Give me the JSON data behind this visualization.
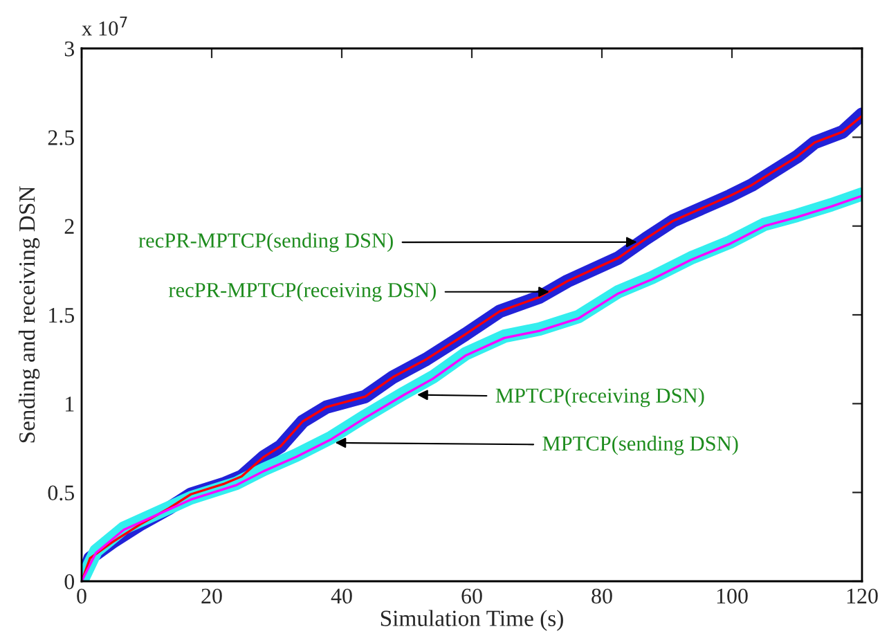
{
  "chart_data": {
    "type": "line",
    "xlabel": "Simulation Time (s)",
    "ylabel": "Sending and receiving DSN",
    "series": [
      {
        "color": "#2222d8",
        "x": [
          0,
          1.3,
          4.7,
          9,
          13.4,
          16.8,
          22,
          24.6,
          28,
          30.6,
          34,
          37.6,
          43.6,
          47.9,
          53,
          59,
          64.3,
          70.4,
          74.7,
          82.5,
          86.8,
          91,
          99.7,
          103,
          110,
          112.7,
          117,
          120
        ],
        "values": [
          0,
          0.13,
          0.22,
          0.32,
          0.41,
          0.49,
          0.55,
          0.59,
          0.7,
          0.76,
          0.9,
          0.98,
          1.04,
          1.15,
          1.25,
          1.39,
          1.52,
          1.6,
          1.69,
          1.82,
          1.93,
          2.03,
          2.17,
          2.23,
          2.39,
          2.47,
          2.53,
          2.63
        ]
      },
      {
        "color": "#33eeee",
        "x": [
          0,
          2.2,
          6.5,
          16.8,
          23.7,
          28,
          33,
          38.4,
          43.6,
          49.6,
          54,
          59,
          65,
          70.4,
          76.4,
          82.5,
          87.7,
          93.7,
          99.7,
          105,
          110,
          115.3,
          120
        ],
        "values": [
          0,
          0.17,
          0.3,
          0.47,
          0.55,
          0.63,
          0.71,
          0.81,
          0.93,
          1.06,
          1.15,
          1.28,
          1.38,
          1.42,
          1.49,
          1.63,
          1.71,
          1.82,
          1.91,
          2.01,
          2.06,
          2.12,
          2.18
        ]
      },
      {
        "color": "#ff0000",
        "x": [
          0,
          1.3,
          4.7,
          9,
          13.4,
          16.8,
          22,
          24.6,
          28,
          30.6,
          34,
          37.6,
          43.6,
          47.9,
          53,
          59,
          64.3,
          70.4,
          74.7,
          82.5,
          86.8,
          91,
          99.7,
          103,
          110,
          112.7,
          117,
          120
        ],
        "values": [
          0,
          0.13,
          0.22,
          0.32,
          0.41,
          0.49,
          0.55,
          0.59,
          0.7,
          0.76,
          0.9,
          0.98,
          1.04,
          1.15,
          1.25,
          1.39,
          1.52,
          1.6,
          1.69,
          1.82,
          1.93,
          2.03,
          2.17,
          2.23,
          2.39,
          2.47,
          2.53,
          2.62
        ]
      },
      {
        "color": "#ff00ff",
        "x": [
          0,
          2.2,
          6.5,
          16.8,
          23.7,
          28,
          33,
          38.4,
          43.6,
          49.6,
          54,
          59,
          65,
          70.4,
          76.4,
          82.5,
          87.7,
          93.7,
          99.7,
          105,
          110,
          115.3,
          120
        ],
        "values": [
          0,
          0.16,
          0.29,
          0.46,
          0.54,
          0.62,
          0.7,
          0.8,
          0.92,
          1.05,
          1.14,
          1.27,
          1.37,
          1.41,
          1.48,
          1.62,
          1.7,
          1.81,
          1.9,
          2.0,
          2.05,
          2.11,
          2.17
        ]
      }
    ],
    "xlim": [
      0,
      120
    ],
    "xticks": [
      0,
      20,
      40,
      60,
      80,
      100,
      120
    ],
    "ylim": [
      0,
      3
    ],
    "yticks": [
      0,
      0.5,
      1,
      1.5,
      2,
      2.5,
      3
    ],
    "grid": false,
    "legend": false,
    "line_style": "solid",
    "annotations": [
      "x 10$^{7}$",
      {
        "text": "recPR-MPTCP(sending DSN)",
        "x": 86,
        "y": 1.91
      },
      {
        "text": "recPR-MPTCP(receiving DSN)",
        "x": 72.5,
        "y": 1.63
      },
      {
        "text": "MPTCP(receiving DSN)",
        "x": 51,
        "y": 1.05
      },
      {
        "text": "MPTCP(sending DSN)",
        "x": 38.4,
        "y": 0.78
      }
    ]
  }
}
